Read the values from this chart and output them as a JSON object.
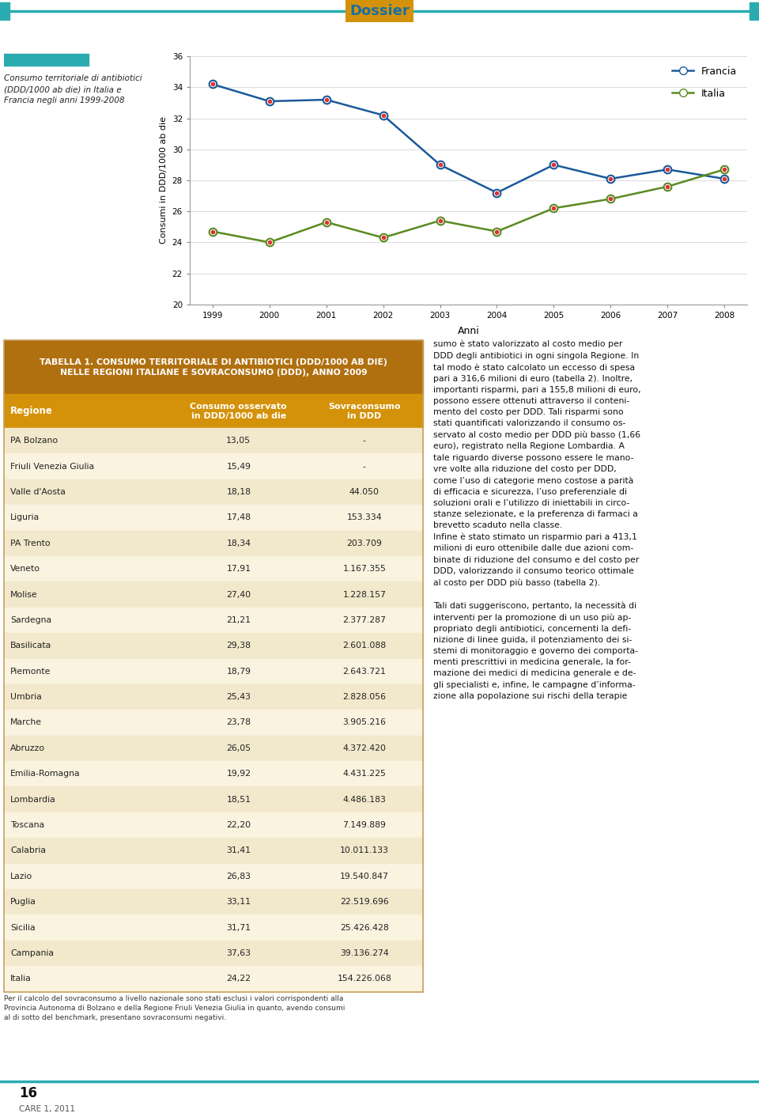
{
  "page_title": "Dossier",
  "page_title_color": "#1a6fa0",
  "page_title_bg": "#d4920a",
  "header_line_color": "#2aabb0",
  "chart_title_text": "Consumo territoriale di antibiotici\n(DDD/1000 ab die) in Italia e\nFrancia negli anni 1999-2008",
  "years": [
    1999,
    2000,
    2001,
    2002,
    2003,
    2004,
    2005,
    2006,
    2007,
    2008
  ],
  "francia_data": [
    34.2,
    33.1,
    33.2,
    32.2,
    29.0,
    27.2,
    29.0,
    28.1,
    28.7,
    28.1
  ],
  "italia_data": [
    24.7,
    24.0,
    25.3,
    24.3,
    25.4,
    24.7,
    26.2,
    26.8,
    27.6,
    28.7
  ],
  "francia_color": "#1a5a9a",
  "italia_color": "#5a8a20",
  "marker_fill": "white",
  "marker_inner": "#dd3333",
  "ylabel": "Consumi in DDD/1000 ab die",
  "xlabel": "Anni",
  "ylim_min": 20,
  "ylim_max": 36,
  "yticks": [
    20,
    22,
    24,
    26,
    28,
    30,
    32,
    34,
    36
  ],
  "table_title_line1": "TABELLA 1. CONSUMO TERRITORIALE DI ANTIBIOTICI (DDD/1000 AB DIE)",
  "table_title_line2": "NELLE REGIONI ITALIANE E SOVRACONSUMO (DDD), ANNO 2009",
  "col1_header": "Regione",
  "col2_header": "Consumo osservato\nin DDD/1000 ab die",
  "col3_header": "Sovraconsumo\nin DDD",
  "table_header_bg": "#d4920a",
  "table_title_bg": "#b07010",
  "table_row_bg_odd": "#f2e8cc",
  "table_row_bg_even": "#faf3e0",
  "table_border_color": "#c8a060",
  "regions": [
    "PA Bolzano",
    "Friuli Venezia Giulia",
    "Valle d'Aosta",
    "Liguria",
    "PA Trento",
    "Veneto",
    "Molise",
    "Sardegna",
    "Basilicata",
    "Piemonte",
    "Umbria",
    "Marche",
    "Abruzzo",
    "Emilia-Romagna",
    "Lombardia",
    "Toscana",
    "Calabria",
    "Lazio",
    "Puglia",
    "Sicilia",
    "Campania",
    "Italia"
  ],
  "consumo": [
    "13,05",
    "15,49",
    "18,18",
    "17,48",
    "18,34",
    "17,91",
    "27,40",
    "21,21",
    "29,38",
    "18,79",
    "25,43",
    "23,78",
    "26,05",
    "19,92",
    "18,51",
    "22,20",
    "31,41",
    "26,83",
    "33,11",
    "31,71",
    "37,63",
    "24,22"
  ],
  "sovraconsumo": [
    "-",
    "-",
    "44.050",
    "153.334",
    "203.709",
    "1.167.355",
    "1.228.157",
    "2.377.287",
    "2.601.088",
    "2.643.721",
    "2.828.056",
    "3.905.216",
    "4.372.420",
    "4.431.225",
    "4.486.183",
    "7.149.889",
    "10.011.133",
    "19.540.847",
    "22.519.696",
    "25.426.428",
    "39.136.274",
    "154.226.068"
  ],
  "footnote": "Per il calcolo del sovraconsumo a livello nazionale sono stati esclusi i valori corrispondenti alla\nProvincia Autonoma di Bolzano e della Regione Friuli Venezia Giulia in quanto, avendo consumi\nal di sotto del benchmark, presentano sovraconsumi negativi.",
  "right_text_lines": [
    "sumo è stato valorizzato al costo medio per",
    "DDD degli antibiotici in ogni singola Regione. In",
    "tal modo è stato calcolato un eccesso di spesa",
    "pari a 316,6 milioni di euro (tabella 2). Inoltre,",
    "importanti risparmi, pari a 155,8 milioni di euro,",
    "possono essere ottenuti attraverso il conteni-",
    "mento del costo per DDD. Tali risparmi sono",
    "stati quantificati valorizzando il consumo os-",
    "servato al costo medio per DDD più basso (1,66",
    "euro), registrato nella Regione Lombardia. A",
    "tale riguardo diverse possono essere le mano-",
    "vre volte alla riduzione del costo per DDD,",
    "come l’uso di categorie meno costose a parità",
    "di efficacia e sicurezza, l’uso preferenziale di",
    "soluzioni orali e l’utilizzo di iniettabili in circo-",
    "stanze selezionate, e la preferenza di farmaci a",
    "brevetto scaduto nella classe.",
    "Infine è stato stimato un risparmio pari a 413,1",
    "milioni di euro ottenibile dalle due azioni com-",
    "binate di riduzione del consumo e del costo per",
    "DDD, valorizzando il consumo teorico ottimale",
    "al costo per DDD più basso (tabella 2).",
    "",
    "Tali dati suggeriscono, pertanto, la necessità di",
    "interventi per la promozione di un uso più ap-",
    "propriato degli antibiotici, concernenti la defi-",
    "nizione di linee guida, il potenziamento dei si-",
    "stemi di monitoraggio e governo dei comporta-",
    "menti prescrittivi in medicina generale, la for-",
    "mazione dei medici di medicina generale e de-",
    "gli specialisti e, infine, le campagne d’informa-",
    "zione alla popolazione sui rischi della terapie"
  ],
  "page_number": "16",
  "journal_name": "CARE 1, 2011",
  "bottom_line_color": "#2aabb0"
}
